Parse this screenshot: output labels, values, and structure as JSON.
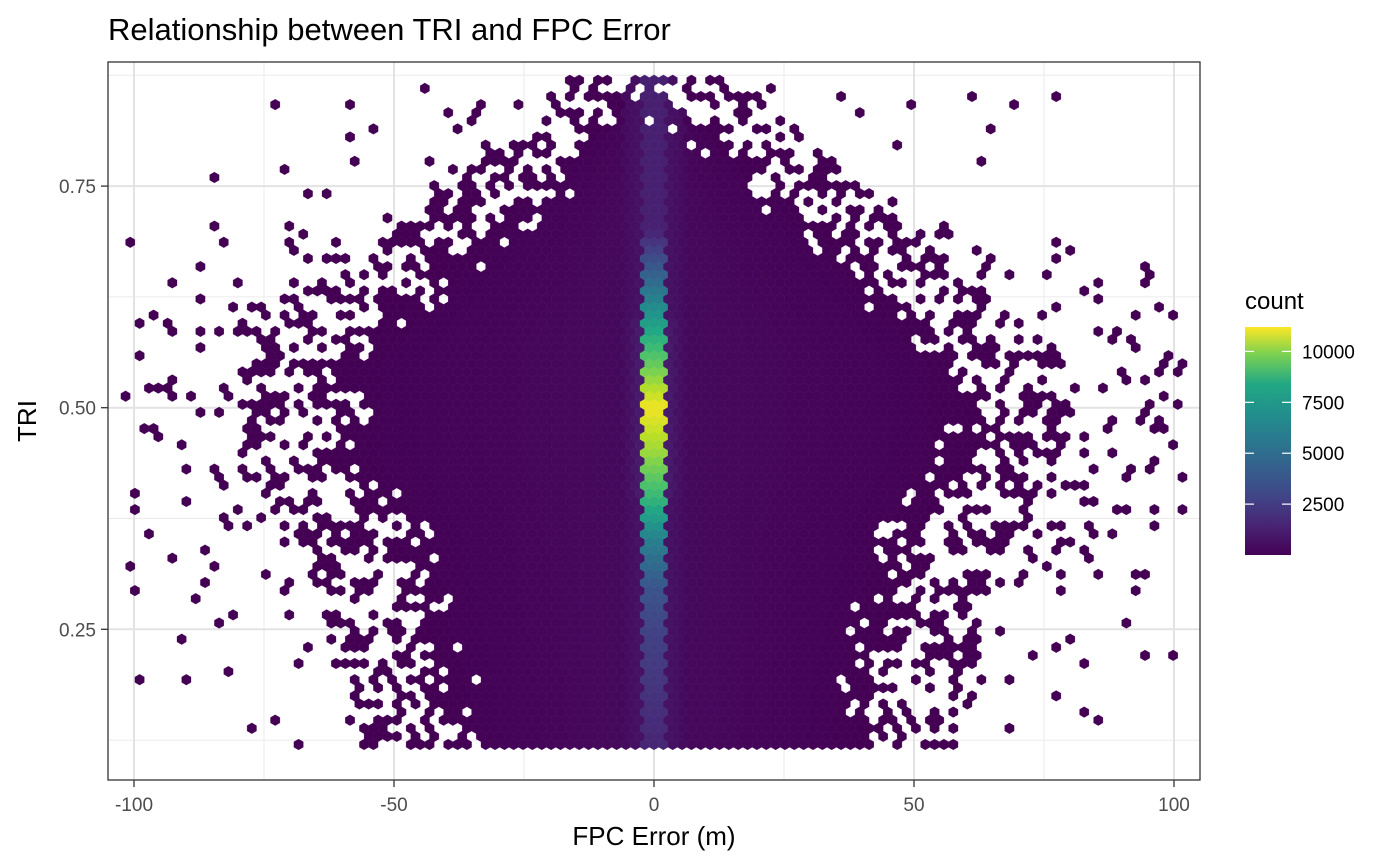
{
  "chart_data": {
    "type": "heatmap",
    "subtype": "hexbin",
    "title": "Relationship between TRI and FPC Error",
    "xlabel": "FPC Error (m)",
    "ylabel": "TRI",
    "xlim": [
      -105,
      105
    ],
    "ylim": [
      0.08,
      0.89
    ],
    "x_ticks": [
      -100,
      -50,
      0,
      50,
      100
    ],
    "x_tick_labels": [
      "-100",
      "-50",
      "0",
      "50",
      "100"
    ],
    "y_ticks": [
      0.25,
      0.5,
      0.75
    ],
    "y_tick_labels": [
      "0.25",
      "0.50",
      "0.75"
    ],
    "grid": true,
    "colorscale": "viridis",
    "legend": {
      "title": "count",
      "placement": "right",
      "range": [
        1,
        11200
      ],
      "ticks": [
        2500,
        5000,
        7500,
        10000
      ],
      "tick_labels": [
        "2500",
        "5000",
        "7500",
        "10000"
      ]
    },
    "density_profile": {
      "description_of_values": "count per hexagon along x = 0 column",
      "x": 0,
      "y": [
        0.12,
        0.2,
        0.25,
        0.3,
        0.35,
        0.4,
        0.45,
        0.5,
        0.55,
        0.6,
        0.65,
        0.7
      ],
      "count": [
        1200,
        1800,
        2200,
        3000,
        4800,
        7500,
        9500,
        11000,
        8500,
        6000,
        3500,
        1000
      ]
    }
  }
}
